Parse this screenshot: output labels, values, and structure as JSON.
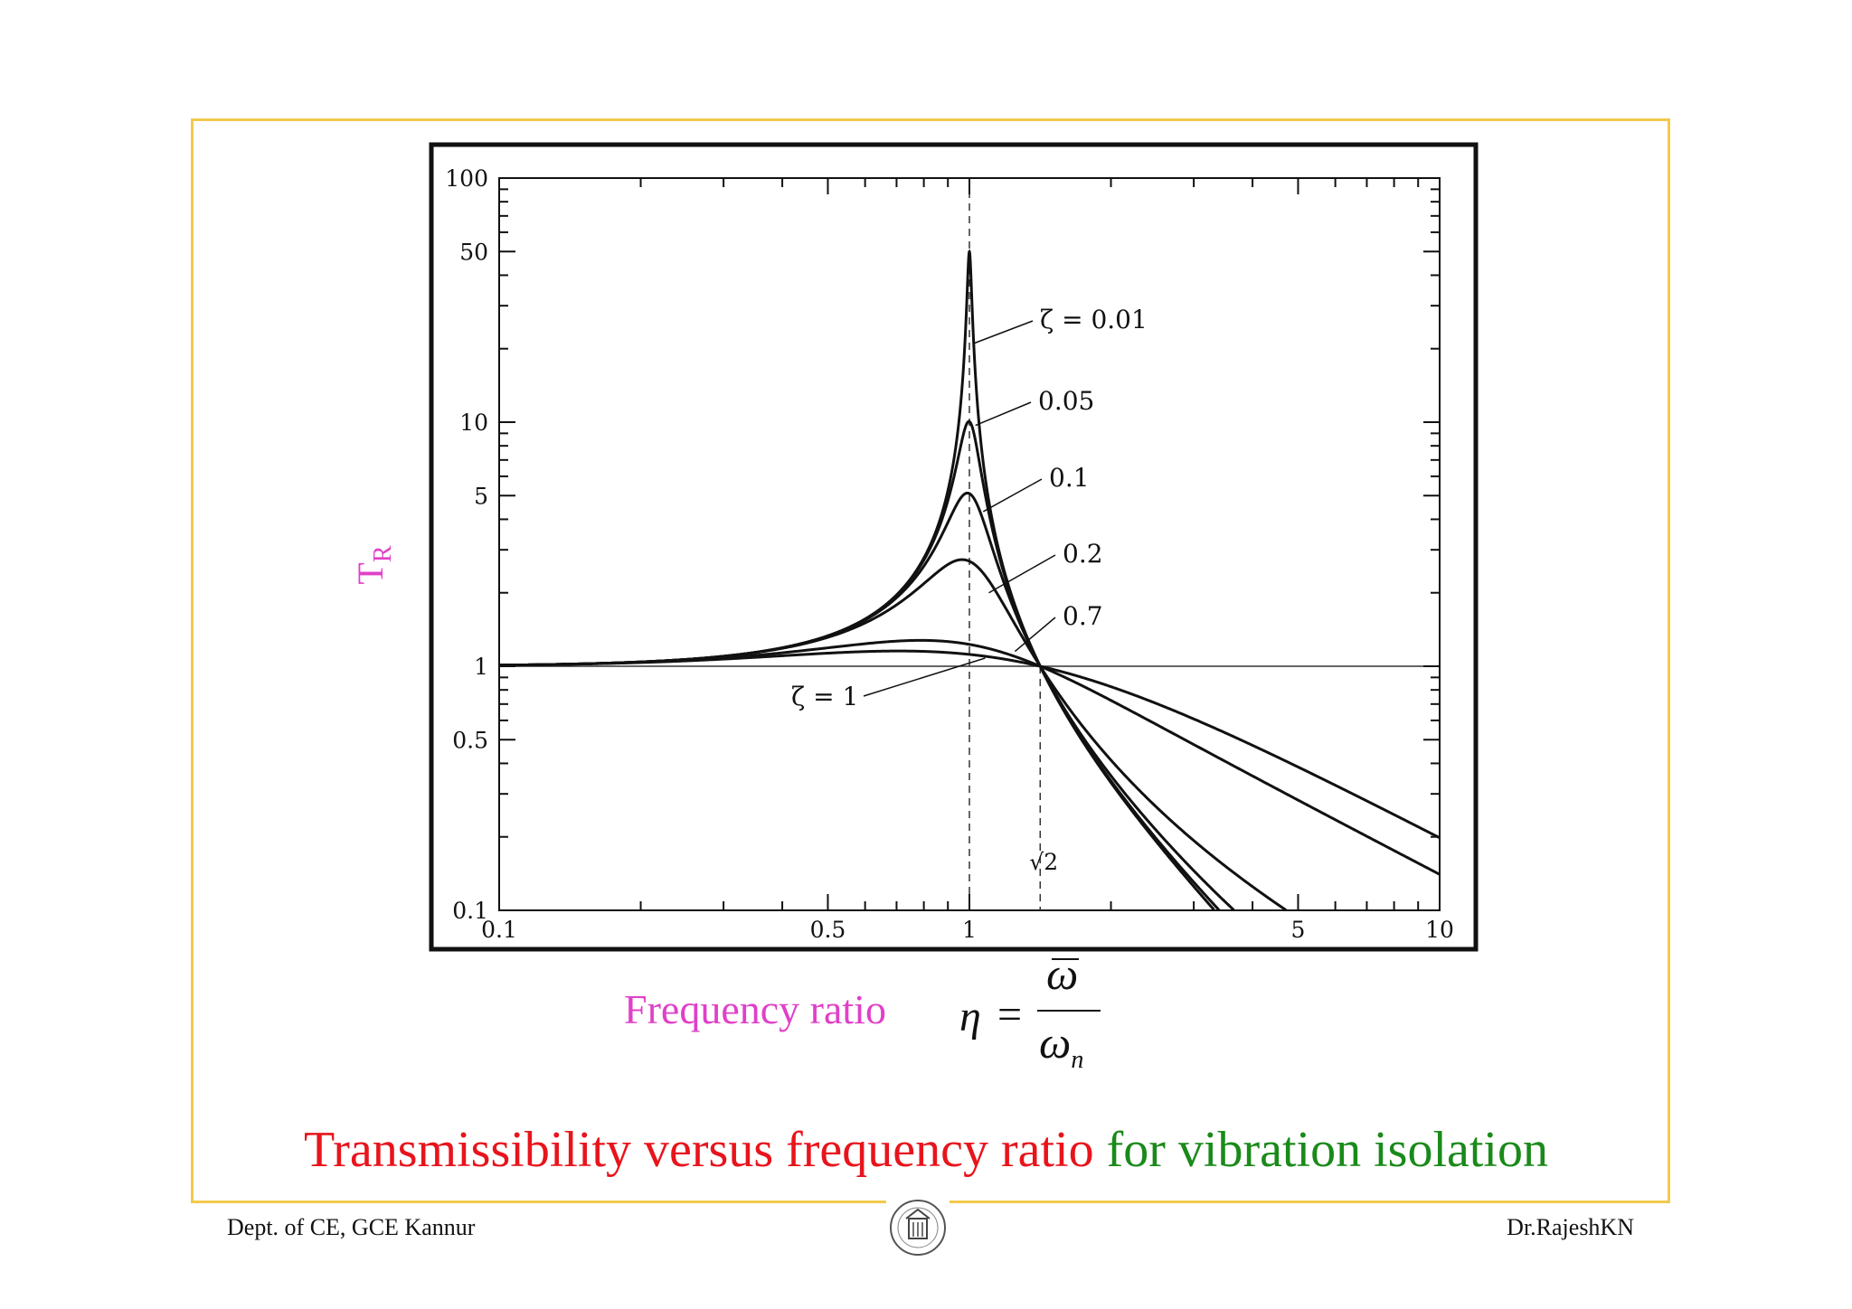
{
  "chart_data": {
    "type": "line",
    "x_scale": "log",
    "y_scale": "log",
    "xlim": [
      0.1,
      10
    ],
    "ylim": [
      0.1,
      100
    ],
    "x_ticks": [
      "0.1",
      "0.5",
      "1",
      "5",
      "10"
    ],
    "y_ticks": [
      "100",
      "50",
      "10",
      "5",
      "1",
      "0.5",
      "0.1"
    ],
    "xlabel": "Frequency ratio",
    "ylabel": "T",
    "ylabel_sub": "R",
    "grid": "dashed reference lines at η = 1, η = √2 and T_R = 1",
    "annotations": [
      "√2"
    ],
    "series": [
      {
        "name": "ζ = 0.01",
        "zeta": 0.01
      },
      {
        "name": "0.05",
        "zeta": 0.05
      },
      {
        "name": "0.1",
        "zeta": 0.1
      },
      {
        "name": "0.2",
        "zeta": 0.2
      },
      {
        "name": "0.7",
        "zeta": 0.7
      },
      {
        "name": "ζ = 1",
        "zeta": 1
      }
    ]
  },
  "formula": {
    "lhs": "η",
    "eq": "=",
    "numerator": "ω",
    "denominator": "ω",
    "denominator_sub": "n"
  },
  "caption": {
    "red": "Transmissibility versus frequency ratio",
    "green": "for vibration isolation"
  },
  "footer": {
    "left": "Dept. of CE, GCE Kannur",
    "right": "Dr.RajeshKN"
  },
  "colors": {
    "frame": "#f2c94c",
    "axis_title": "#e040c8",
    "caption_red": "#e8141c",
    "caption_green": "#1a8a1a"
  }
}
